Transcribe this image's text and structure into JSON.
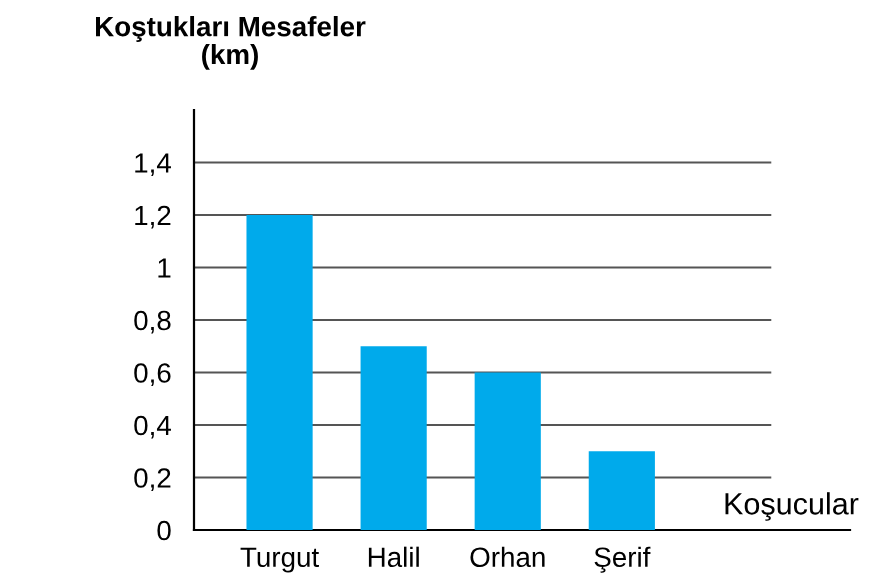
{
  "chart_data": {
    "type": "bar",
    "ylabel": "Koştukları Mesafeler\n(km)",
    "xlabel": "Koşucular",
    "categories": [
      "Turgut",
      "Halil",
      "Orhan",
      "Şerif"
    ],
    "values": [
      1.2,
      0.7,
      0.6,
      0.3
    ],
    "color": "#00aaeb",
    "ylim": [
      0,
      1.6
    ],
    "yticks": [
      0,
      {
        "value": 0.2,
        "label": "0,2"
      },
      {
        "value": 0.4,
        "label": "0,4"
      },
      {
        "value": 0.6,
        "label": "0,6"
      },
      {
        "value": 0.8,
        "label": "0,8"
      },
      1,
      {
        "value": 1.2,
        "label": "1,2"
      },
      {
        "value": 1.4,
        "label": "1,4"
      }
    ],
    "grid": "y"
  }
}
